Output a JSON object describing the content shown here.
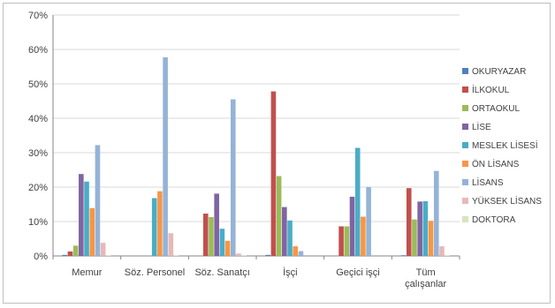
{
  "chart_data": {
    "type": "bar",
    "title": "",
    "xlabel": "",
    "ylabel": "",
    "ylim": [
      0,
      70
    ],
    "yticks": [
      "0%",
      "10%",
      "20%",
      "30%",
      "40%",
      "50%",
      "60%",
      "70%"
    ],
    "y_unit": "%",
    "grid": true,
    "legend_position": "right",
    "categories": [
      [
        "Memur"
      ],
      [
        "Söz. Personel"
      ],
      [
        "Söz. Sanatçı"
      ],
      [
        "İşçi"
      ],
      [
        "Geçici işçi"
      ],
      [
        "Tüm",
        "çalışanlar"
      ]
    ],
    "series": [
      {
        "name": "OKURYAZAR",
        "color": "#4f81bd",
        "values": [
          0.3,
          0,
          0,
          0.3,
          0,
          0.2
        ]
      },
      {
        "name": "İLKOKUL",
        "color": "#c0504d",
        "values": [
          1.3,
          0,
          12.3,
          47.8,
          8.6,
          19.7
        ]
      },
      {
        "name": "ORTAOKUL",
        "color": "#9bbb59",
        "values": [
          3.0,
          0,
          11.3,
          23.2,
          8.6,
          10.6
        ]
      },
      {
        "name": "LİSE",
        "color": "#8064a2",
        "values": [
          23.8,
          0,
          18.1,
          14.2,
          17.2,
          15.8
        ]
      },
      {
        "name": "MESLEK LİSESİ",
        "color": "#4bacc6",
        "values": [
          21.6,
          16.8,
          7.9,
          10.3,
          31.4,
          15.9
        ]
      },
      {
        "name": "ÖN LİSANS",
        "color": "#f79646",
        "values": [
          13.9,
          18.8,
          4.4,
          2.8,
          11.4,
          10.2
        ]
      },
      {
        "name": "LİSANS",
        "color": "#95b3d7",
        "values": [
          32.2,
          57.7,
          45.5,
          1.4,
          20.0,
          24.7
        ]
      },
      {
        "name": "YÜKSEK LİSANS",
        "color": "#e6b9b8",
        "values": [
          3.8,
          6.6,
          0.7,
          0,
          0,
          2.8
        ]
      },
      {
        "name": "DOKTORA",
        "color": "#d7e4bd",
        "values": [
          0.2,
          0.1,
          0.1,
          0,
          0,
          0.1
        ]
      }
    ]
  }
}
